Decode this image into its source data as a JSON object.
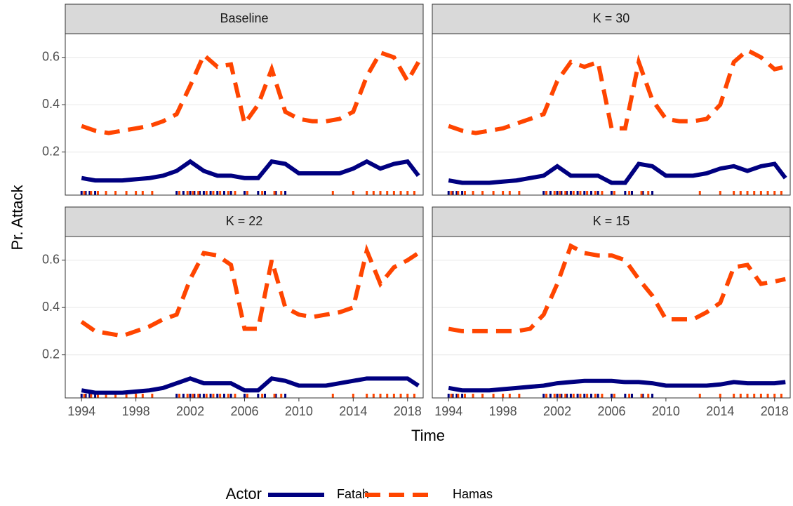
{
  "x_label": "Time",
  "y_label": "Pr. Attack",
  "legend_title": "Actor",
  "events": [
    [
      1994,
      1994.3,
      1994.6,
      1995,
      2001,
      2001.5,
      2002,
      2002.3,
      2002.7,
      2003,
      2003.5,
      2004,
      2004.5,
      2005,
      2006,
      2007,
      2007.5,
      2008.3,
      2009
    ],
    [
      1994.2,
      1994.7,
      1995.2,
      1995.8,
      1996.5,
      1997.3,
      1998,
      1998.5,
      1999.2,
      2001.2,
      2001.8,
      2002.2,
      2002.6,
      2003.2,
      2003.7,
      2004.2,
      2004.8,
      2005.3,
      2006.2,
      2007.3,
      2008.2,
      2008.7,
      2012.5,
      2014,
      2015,
      2015.5,
      2016,
      2016.5,
      2017,
      2017.5,
      2018,
      2018.5
    ]
  ],
  "chart_data": [
    {
      "type": "line",
      "title": "Baseline",
      "x": [
        1994,
        1995,
        1996,
        1997,
        1998,
        1999,
        2000,
        2001,
        2002,
        2003,
        2004,
        2005,
        2006,
        2007,
        2008,
        2009,
        2010,
        2011,
        2012,
        2013,
        2014,
        2015,
        2016,
        2017,
        2018,
        2018.8
      ],
      "xlim": [
        1992.8,
        2019.15
      ],
      "ylim": [
        0.018,
        0.7
      ],
      "xticks": [
        1994,
        1998,
        2002,
        2006,
        2010,
        2014,
        2018
      ],
      "yticks": [
        0.2,
        0.4,
        0.6
      ],
      "grid": true,
      "series": [
        {
          "name": "Fatah",
          "color": "#000080",
          "dash": "solid",
          "values": [
            0.09,
            0.08,
            0.08,
            0.08,
            0.085,
            0.09,
            0.1,
            0.12,
            0.16,
            0.12,
            0.1,
            0.1,
            0.09,
            0.09,
            0.16,
            0.15,
            0.11,
            0.11,
            0.11,
            0.11,
            0.13,
            0.16,
            0.13,
            0.15,
            0.16,
            0.1
          ]
        },
        {
          "name": "Hamas",
          "color": "#ff4500",
          "dash": "dashed",
          "values": [
            0.31,
            0.29,
            0.28,
            0.29,
            0.3,
            0.31,
            0.33,
            0.36,
            0.48,
            0.61,
            0.56,
            0.57,
            0.32,
            0.4,
            0.55,
            0.37,
            0.34,
            0.33,
            0.33,
            0.34,
            0.37,
            0.52,
            0.62,
            0.6,
            0.5,
            0.58
          ]
        }
      ]
    },
    {
      "type": "line",
      "title": "K = 30",
      "x": [
        1994,
        1995,
        1996,
        1997,
        1998,
        1999,
        2000,
        2001,
        2002,
        2003,
        2004,
        2005,
        2006,
        2007,
        2008,
        2009,
        2010,
        2011,
        2012,
        2013,
        2014,
        2015,
        2016,
        2017,
        2018,
        2018.8
      ],
      "xlim": [
        1992.8,
        2019.15
      ],
      "ylim": [
        0.018,
        0.7
      ],
      "xticks": [
        1994,
        1998,
        2002,
        2006,
        2010,
        2014,
        2018
      ],
      "yticks": [
        0.2,
        0.4,
        0.6
      ],
      "grid": true,
      "series": [
        {
          "name": "Fatah",
          "color": "#000080",
          "dash": "solid",
          "values": [
            0.08,
            0.07,
            0.07,
            0.07,
            0.075,
            0.08,
            0.09,
            0.1,
            0.14,
            0.1,
            0.1,
            0.1,
            0.07,
            0.07,
            0.15,
            0.14,
            0.1,
            0.1,
            0.1,
            0.11,
            0.13,
            0.14,
            0.12,
            0.14,
            0.15,
            0.09
          ]
        },
        {
          "name": "Hamas",
          "color": "#ff4500",
          "dash": "dashed",
          "values": [
            0.31,
            0.29,
            0.28,
            0.29,
            0.3,
            0.32,
            0.34,
            0.36,
            0.5,
            0.58,
            0.56,
            0.58,
            0.3,
            0.3,
            0.58,
            0.42,
            0.34,
            0.33,
            0.33,
            0.34,
            0.4,
            0.58,
            0.63,
            0.6,
            0.55,
            0.56
          ]
        }
      ]
    },
    {
      "type": "line",
      "title": "K = 22",
      "x": [
        1994,
        1995,
        1996,
        1997,
        1998,
        1999,
        2000,
        2001,
        2002,
        2003,
        2004,
        2005,
        2006,
        2007,
        2008,
        2009,
        2010,
        2011,
        2012,
        2013,
        2014,
        2015,
        2016,
        2017,
        2018,
        2018.8
      ],
      "xlim": [
        1992.8,
        2019.15
      ],
      "ylim": [
        0.018,
        0.7
      ],
      "xticks": [
        1994,
        1998,
        2002,
        2006,
        2010,
        2014,
        2018
      ],
      "yticks": [
        0.2,
        0.4,
        0.6
      ],
      "grid": true,
      "series": [
        {
          "name": "Fatah",
          "color": "#000080",
          "dash": "solid",
          "values": [
            0.05,
            0.04,
            0.04,
            0.04,
            0.045,
            0.05,
            0.06,
            0.08,
            0.1,
            0.08,
            0.08,
            0.08,
            0.05,
            0.05,
            0.1,
            0.09,
            0.07,
            0.07,
            0.07,
            0.08,
            0.09,
            0.1,
            0.1,
            0.1,
            0.1,
            0.07
          ]
        },
        {
          "name": "Hamas",
          "color": "#ff4500",
          "dash": "dashed",
          "values": [
            0.34,
            0.3,
            0.29,
            0.28,
            0.3,
            0.32,
            0.35,
            0.37,
            0.52,
            0.63,
            0.62,
            0.58,
            0.31,
            0.31,
            0.6,
            0.4,
            0.37,
            0.36,
            0.37,
            0.38,
            0.4,
            0.64,
            0.5,
            0.57,
            0.6,
            0.63
          ]
        }
      ]
    },
    {
      "type": "line",
      "title": "K = 15",
      "x": [
        1994,
        1995,
        1996,
        1997,
        1998,
        1999,
        2000,
        2001,
        2002,
        2003,
        2004,
        2005,
        2006,
        2007,
        2008,
        2009,
        2010,
        2011,
        2012,
        2013,
        2014,
        2015,
        2016,
        2017,
        2018,
        2018.8
      ],
      "xlim": [
        1992.8,
        2019.15
      ],
      "ylim": [
        0.018,
        0.7
      ],
      "xticks": [
        1994,
        1998,
        2002,
        2006,
        2010,
        2014,
        2018
      ],
      "yticks": [
        0.2,
        0.4,
        0.6
      ],
      "grid": true,
      "series": [
        {
          "name": "Fatah",
          "color": "#000080",
          "dash": "solid",
          "values": [
            0.06,
            0.05,
            0.05,
            0.05,
            0.055,
            0.06,
            0.065,
            0.07,
            0.08,
            0.085,
            0.09,
            0.09,
            0.09,
            0.085,
            0.085,
            0.08,
            0.07,
            0.07,
            0.07,
            0.07,
            0.075,
            0.085,
            0.08,
            0.08,
            0.08,
            0.085
          ]
        },
        {
          "name": "Hamas",
          "color": "#ff4500",
          "dash": "dashed",
          "values": [
            0.31,
            0.3,
            0.3,
            0.3,
            0.3,
            0.3,
            0.31,
            0.37,
            0.5,
            0.66,
            0.63,
            0.62,
            0.62,
            0.6,
            0.52,
            0.45,
            0.35,
            0.35,
            0.35,
            0.38,
            0.42,
            0.57,
            0.58,
            0.5,
            0.51,
            0.52
          ]
        }
      ]
    }
  ]
}
